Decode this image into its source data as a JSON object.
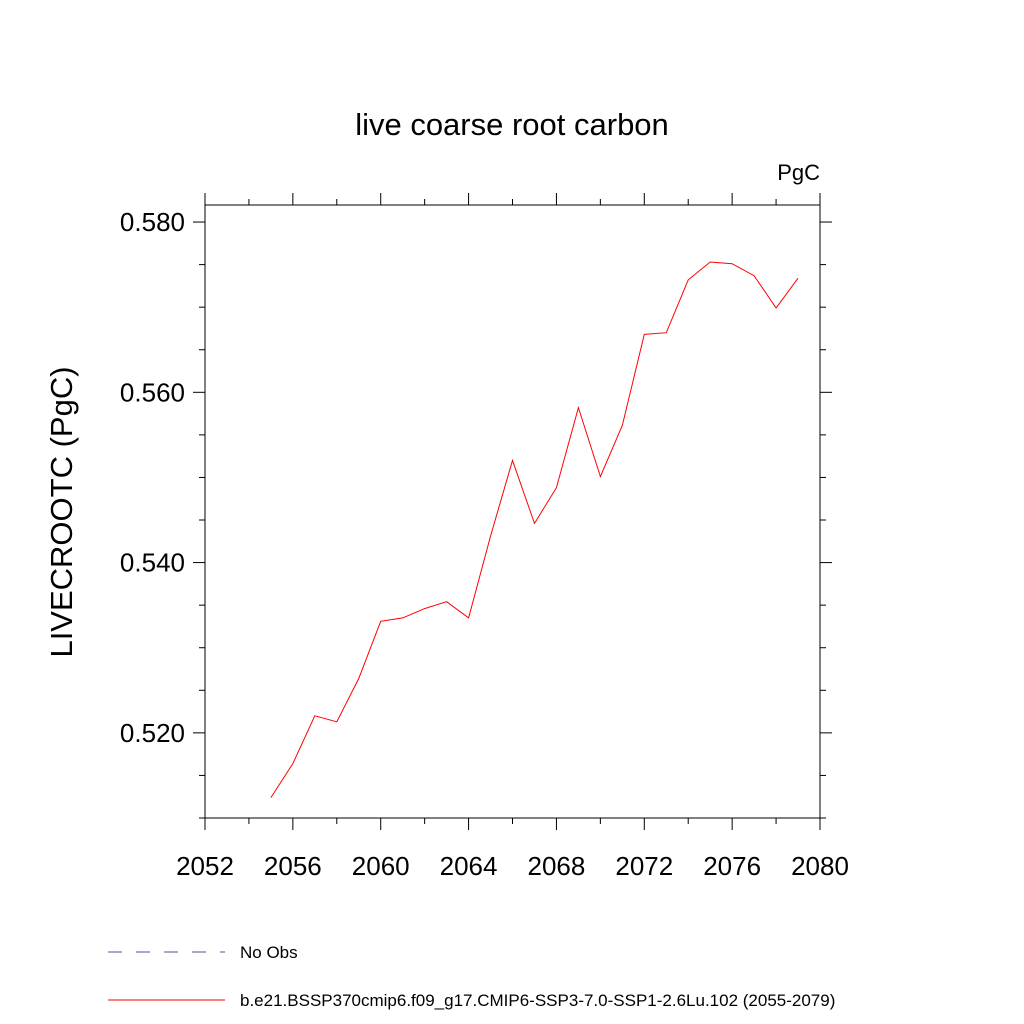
{
  "chart_data": {
    "type": "line",
    "title": "live coarse root carbon",
    "units_label": "PgC",
    "ylabel": "LIVECROOTC  (PgC)",
    "xlabel": "",
    "xlim": [
      2052,
      2080
    ],
    "ylim": [
      0.51,
      0.582
    ],
    "x_ticks": [
      2052,
      2056,
      2060,
      2064,
      2068,
      2072,
      2076,
      2080
    ],
    "x_tick_labels": [
      "2052",
      "2056",
      "2060",
      "2064",
      "2068",
      "2072",
      "2076",
      "2080"
    ],
    "y_ticks": [
      0.52,
      0.54,
      0.56,
      0.58
    ],
    "y_tick_labels": [
      "0.520",
      "0.540",
      "0.560",
      "0.580"
    ],
    "grid": false,
    "legend_placement": "bottom",
    "series": [
      {
        "name": "b.e21.BSSP370cmip6.f09_g17.CMIP6-SSP3-7.0-SSP1-2.6Lu.102 (2055-2079)",
        "color": "#ff0000",
        "style": "solid",
        "x": [
          2055,
          2056,
          2057,
          2058,
          2059,
          2060,
          2061,
          2062,
          2063,
          2064,
          2065,
          2066,
          2067,
          2068,
          2069,
          2070,
          2071,
          2072,
          2073,
          2074,
          2075,
          2076,
          2077,
          2078,
          2079
        ],
        "y": [
          0.5124,
          0.5164,
          0.522,
          0.5213,
          0.5264,
          0.5331,
          0.5335,
          0.5346,
          0.5354,
          0.5335,
          0.5431,
          0.552,
          0.5446,
          0.5488,
          0.5582,
          0.5501,
          0.5561,
          0.5668,
          0.567,
          0.5732,
          0.5753,
          0.5751,
          0.5737,
          0.5699,
          0.5734
        ]
      }
    ],
    "legend": [
      {
        "label": "No Obs",
        "color": "#5b4b9a",
        "style": "dashed"
      },
      {
        "label": "b.e21.BSSP370cmip6.f09_g17.CMIP6-SSP3-7.0-SSP1-2.6Lu.102 (2055-2079)",
        "color": "#ff0000",
        "style": "solid"
      }
    ]
  }
}
